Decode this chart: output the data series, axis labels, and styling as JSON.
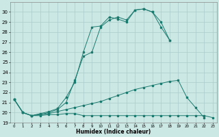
{
  "xlabel": "Humidex (Indice chaleur)",
  "background_color": "#cce8e4",
  "grid_color": "#aaccca",
  "line_color": "#1a7a6e",
  "lines": [
    {
      "x": [
        0,
        1,
        2,
        3,
        4,
        5,
        6,
        7,
        8,
        9,
        10,
        11,
        12,
        13,
        14,
        15,
        16,
        17,
        18,
        19,
        20,
        21,
        22,
        23
      ],
      "y": [
        21.3,
        20.0,
        19.7,
        19.7,
        19.8,
        19.8,
        19.9,
        19.9,
        19.7,
        19.7,
        19.7,
        19.7,
        19.7,
        19.7,
        19.7,
        19.7,
        19.7,
        19.7,
        19.7,
        19.7,
        19.7,
        19.7,
        19.7,
        19.5
      ]
    },
    {
      "x": [
        0,
        1,
        2,
        3,
        4,
        5,
        6,
        7,
        8,
        9,
        10,
        11,
        12,
        13,
        14,
        15,
        16,
        17,
        18,
        19,
        20,
        21,
        22
      ],
      "y": [
        21.3,
        20.0,
        19.7,
        19.8,
        19.9,
        20.1,
        20.3,
        20.5,
        20.7,
        20.9,
        21.1,
        21.4,
        21.7,
        22.0,
        22.3,
        22.5,
        22.7,
        22.9,
        23.1,
        23.2,
        21.5,
        20.5,
        19.5
      ]
    },
    {
      "x": [
        0,
        1,
        2,
        3,
        4,
        5,
        6,
        7,
        8,
        9,
        10,
        11,
        12,
        13,
        14,
        15,
        16,
        17,
        18
      ],
      "y": [
        21.3,
        20.0,
        19.7,
        19.8,
        20.0,
        20.3,
        21.0,
        23.2,
        25.6,
        26.0,
        28.5,
        29.2,
        29.5,
        29.2,
        30.2,
        30.3,
        30.0,
        29.0,
        27.2
      ]
    },
    {
      "x": [
        0,
        1,
        2,
        3,
        4,
        5,
        6,
        7,
        8,
        9,
        10,
        11,
        12,
        13,
        14,
        15,
        16,
        17,
        18
      ],
      "y": [
        21.3,
        20.0,
        19.7,
        19.9,
        20.1,
        20.4,
        21.5,
        23.0,
        26.0,
        28.5,
        28.6,
        29.5,
        29.3,
        29.0,
        30.2,
        30.3,
        30.0,
        28.5,
        27.2
      ]
    }
  ],
  "xlim": [
    -0.5,
    23.5
  ],
  "ylim": [
    19,
    31
  ],
  "yticks": [
    19,
    20,
    21,
    22,
    23,
    24,
    25,
    26,
    27,
    28,
    29,
    30
  ],
  "xticks": [
    0,
    1,
    2,
    3,
    4,
    5,
    6,
    7,
    8,
    9,
    10,
    11,
    12,
    13,
    14,
    15,
    16,
    17,
    18,
    19,
    20,
    21,
    22,
    23
  ]
}
